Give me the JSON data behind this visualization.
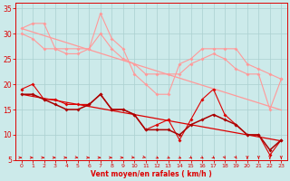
{
  "x": [
    0,
    1,
    2,
    3,
    4,
    5,
    6,
    7,
    8,
    9,
    10,
    11,
    12,
    13,
    14,
    15,
    16,
    17,
    18,
    19,
    20,
    21,
    22,
    23
  ],
  "line_pink1": [
    31,
    32,
    32,
    27,
    27,
    27,
    27,
    34,
    29,
    27,
    22,
    20,
    18,
    18,
    24,
    25,
    27,
    27,
    27,
    27,
    24,
    23,
    22,
    21
  ],
  "line_pink2": [
    30,
    29,
    27,
    27,
    26,
    26,
    27,
    30,
    27,
    25,
    24,
    22,
    22,
    22,
    22,
    24,
    25,
    26,
    25,
    23,
    22,
    22,
    15,
    21
  ],
  "line_pink_slope": [
    31,
    30.3,
    29.6,
    28.9,
    28.2,
    27.5,
    26.8,
    26.1,
    25.4,
    24.7,
    24.0,
    23.3,
    22.6,
    21.9,
    21.2,
    20.5,
    19.8,
    19.1,
    18.4,
    17.7,
    17.0,
    16.3,
    15.6,
    14.9
  ],
  "line_red1": [
    19,
    20,
    17,
    17,
    16,
    16,
    16,
    18,
    15,
    15,
    14,
    11,
    12,
    13,
    9,
    13,
    17,
    19,
    14,
    12,
    10,
    10,
    6,
    9
  ],
  "line_red2": [
    18,
    18,
    17,
    16,
    15,
    15,
    16,
    18,
    15,
    15,
    14,
    11,
    11,
    11,
    10,
    12,
    13,
    14,
    13,
    12,
    10,
    10,
    7,
    9
  ],
  "line_red_slope": [
    18,
    17.6,
    17.2,
    16.8,
    16.4,
    16.0,
    15.6,
    15.2,
    14.8,
    14.4,
    14.0,
    13.6,
    13.2,
    12.8,
    12.4,
    12.0,
    11.6,
    11.2,
    10.8,
    10.4,
    10.0,
    9.6,
    9.2,
    8.8
  ],
  "arrow_angles": [
    0,
    0,
    0,
    0,
    0,
    15,
    0,
    0,
    0,
    0,
    15,
    30,
    45,
    45,
    45,
    60,
    60,
    60,
    75,
    75,
    90,
    90,
    90,
    90
  ],
  "background_color": "#cceaea",
  "grid_color": "#aad0d0",
  "color_pink": "#ff9999",
  "color_red": "#dd0000",
  "color_darkred": "#aa0000",
  "xlabel": "Vent moyen/en rafales ( km/h )",
  "ylim": [
    5,
    36
  ],
  "xlim": [
    -0.5,
    23.5
  ],
  "yticks": [
    5,
    10,
    15,
    20,
    25,
    30,
    35
  ],
  "xticks": [
    0,
    1,
    2,
    3,
    4,
    5,
    6,
    7,
    8,
    9,
    10,
    11,
    12,
    13,
    14,
    15,
    16,
    17,
    18,
    19,
    20,
    21,
    22,
    23
  ]
}
